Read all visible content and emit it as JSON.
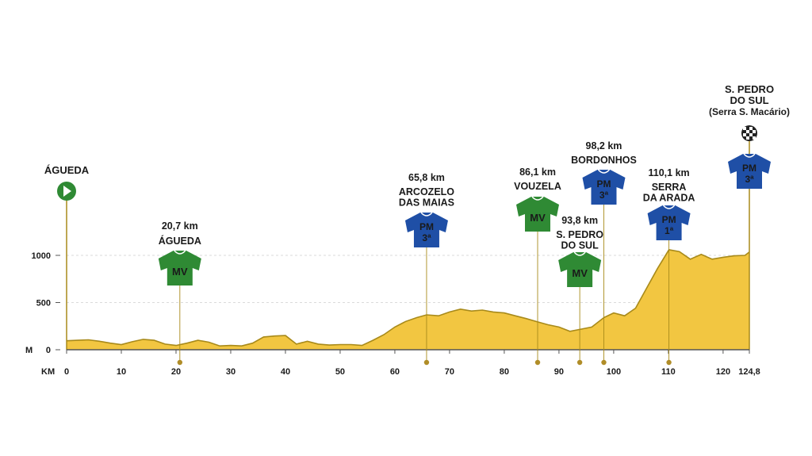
{
  "chart_data": {
    "type": "area",
    "title": "",
    "xlabel": "KM",
    "ylabel": "M",
    "xlim": [
      0,
      124.8
    ],
    "ylim": [
      0,
      1100
    ],
    "x_ticks": [
      0,
      10,
      20,
      30,
      40,
      50,
      60,
      70,
      80,
      90,
      100,
      110,
      120,
      124.8
    ],
    "x_tick_labels": [
      "0",
      "10",
      "20",
      "30",
      "40",
      "50",
      "60",
      "70",
      "80",
      "90",
      "100",
      "110",
      "120",
      "124,8"
    ],
    "y_ticks": [
      0,
      500,
      1000
    ],
    "y_tick_labels": [
      "0",
      "500",
      "1000"
    ],
    "grid": true,
    "colors": {
      "fill": "#f2c641",
      "line": "#a88a1a",
      "mv": "#2f8a34",
      "pm": "#1f4fa6",
      "axis": "#777777"
    },
    "profile": {
      "x": [
        0,
        2,
        4,
        6,
        8,
        10,
        12,
        14,
        16,
        18,
        20,
        22,
        24,
        26,
        28,
        30,
        32,
        34,
        36,
        38,
        40,
        42,
        44,
        46,
        48,
        50,
        52,
        54,
        56,
        58,
        60,
        62,
        64,
        65.8,
        68,
        70,
        72,
        74,
        76,
        78,
        80,
        82,
        84,
        86.1,
        88,
        90,
        92,
        93.8,
        96,
        98.2,
        100,
        102,
        104,
        106,
        108,
        110.1,
        112,
        114,
        116,
        118,
        120,
        122,
        124,
        124.8
      ],
      "y": [
        95,
        100,
        105,
        90,
        70,
        55,
        85,
        110,
        100,
        60,
        45,
        70,
        100,
        80,
        40,
        45,
        40,
        70,
        135,
        145,
        150,
        60,
        90,
        60,
        50,
        55,
        55,
        45,
        100,
        160,
        240,
        300,
        340,
        370,
        360,
        400,
        430,
        410,
        420,
        400,
        390,
        360,
        330,
        295,
        265,
        240,
        195,
        215,
        240,
        340,
        390,
        360,
        440,
        650,
        860,
        1060,
        1040,
        960,
        1010,
        960,
        980,
        995,
        1000,
        1035
      ]
    },
    "start": {
      "name": "ÁGUEDA"
    },
    "finish": {
      "name_lines": [
        "S. PEDRO",
        "DO SUL",
        "(Serra S. Macário)"
      ],
      "km": 124.8,
      "classification": "PM",
      "category": "3ª"
    },
    "points": [
      {
        "km": 20.7,
        "km_label": "20,7 km",
        "name_lines": [
          "ÁGUEDA"
        ],
        "type": "MV",
        "category": ""
      },
      {
        "km": 65.8,
        "km_label": "65,8 km",
        "name_lines": [
          "ARCOZELO",
          "DAS MAIAS"
        ],
        "type": "PM",
        "category": "3ª"
      },
      {
        "km": 86.1,
        "km_label": "86,1 km",
        "name_lines": [
          "VOUZELA"
        ],
        "type": "MV",
        "category": ""
      },
      {
        "km": 93.8,
        "km_label": "93,8 km",
        "name_lines": [
          "S. PEDRO",
          "DO SUL"
        ],
        "type": "MV",
        "category": ""
      },
      {
        "km": 98.2,
        "km_label": "98,2 km",
        "name_lines": [
          "BORDONHOS"
        ],
        "type": "PM",
        "category": "3ª"
      },
      {
        "km": 110.1,
        "km_label": "110,1 km",
        "name_lines": [
          "SERRA",
          "DA ARADA"
        ],
        "type": "PM",
        "category": "1ª"
      }
    ]
  }
}
